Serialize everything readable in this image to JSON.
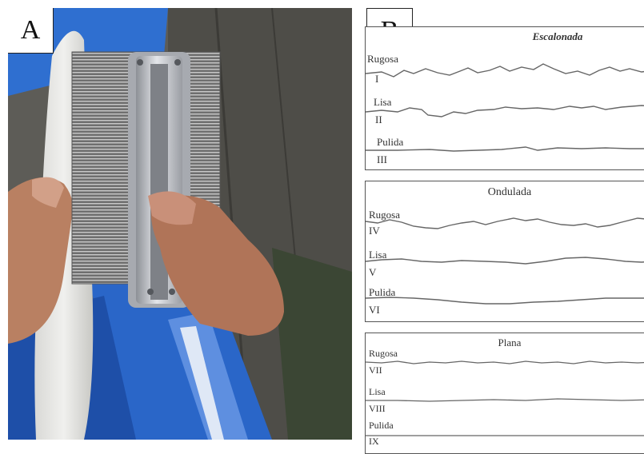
{
  "panel_a": {
    "label": "A"
  },
  "panel_b": {
    "label": "B",
    "groups": [
      {
        "title": "Escalonada",
        "profiles": [
          {
            "surface": "Rugosa",
            "numeral": "I"
          },
          {
            "surface": "Lisa",
            "numeral": "II"
          },
          {
            "surface": "Pulida",
            "numeral": "III"
          }
        ]
      },
      {
        "title": "Ondulada",
        "profiles": [
          {
            "surface": "Rugosa",
            "numeral": "IV"
          },
          {
            "surface": "Lisa",
            "numeral": "V"
          },
          {
            "surface": "Pulida",
            "numeral": "VI"
          }
        ]
      },
      {
        "title": "Plana",
        "profiles": [
          {
            "surface": "Rugosa",
            "numeral": "VII"
          },
          {
            "surface": "Lisa",
            "numeral": "VIII"
          },
          {
            "surface": "Pulida",
            "numeral": "IX"
          }
        ]
      }
    ]
  }
}
